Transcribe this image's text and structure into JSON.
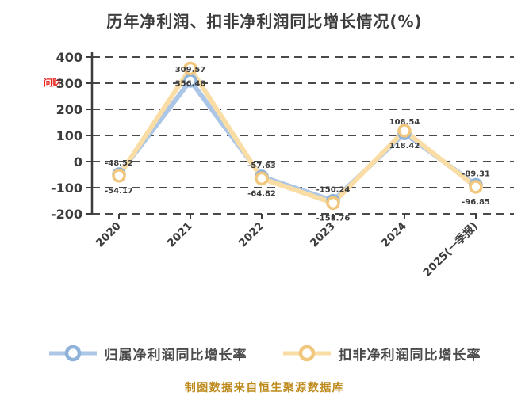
{
  "title": "历年净利润、扣非净利润同比增长情况(%)",
  "red_logo_text": "问财",
  "watermark": "制图数据来自恒生聚源数据库",
  "chart_data": {
    "type": "line",
    "title": "历年净利润、扣非净利润同比增长情况(%)",
    "categories": [
      "2020",
      "2021",
      "2022",
      "2023",
      "2024",
      "2025(一季报)"
    ],
    "y_ticks": [
      400,
      300,
      200,
      100,
      0,
      -100,
      -200
    ],
    "ylim": [
      -200,
      400
    ],
    "xlabel": "",
    "ylabel": "",
    "grid": "horizontal-dashed",
    "legend_position": "bottom",
    "series": [
      {
        "name": "归属净利润同比增长率",
        "line_color": "#abc6e6",
        "marker_color": "#8fb2da",
        "values": [
          -48.52,
          309.57,
          -57.63,
          -150.24,
          108.54,
          -89.31
        ],
        "labels": [
          "-48.52",
          "309.57",
          "-57.63",
          "-150.24",
          "108.54",
          "-89.31"
        ]
      },
      {
        "name": "扣非净利润同比增长率",
        "line_color": "#f9dda5",
        "marker_color": "#f1c77d",
        "values": [
          -54.17,
          356.48,
          -64.82,
          -158.76,
          118.42,
          -96.85
        ],
        "labels": [
          "-54.17",
          "356.48",
          "-64.82",
          "-158.76",
          "118.42",
          "-96.85"
        ]
      }
    ]
  },
  "legend": {
    "items": [
      {
        "label": "归属净利润同比增长率",
        "line_color": "#abc6e6",
        "ring_color": "#8fb2da"
      },
      {
        "label": "扣非净利润同比增长率",
        "line_color": "#f9dda5",
        "ring_color": "#f1c77d"
      }
    ]
  },
  "colors": {
    "background": "#ffffff",
    "grid": "#4a4a4a",
    "axis": "#3c3c3c",
    "tick_label": "#3c3c3c",
    "point_label": "#3c3c3c",
    "title": "#3c3c3c",
    "watermark": "#bd8a1b",
    "red_logo": "#e8211a",
    "series_blue": "#abc6e6",
    "series_yellow": "#f9dda5"
  }
}
